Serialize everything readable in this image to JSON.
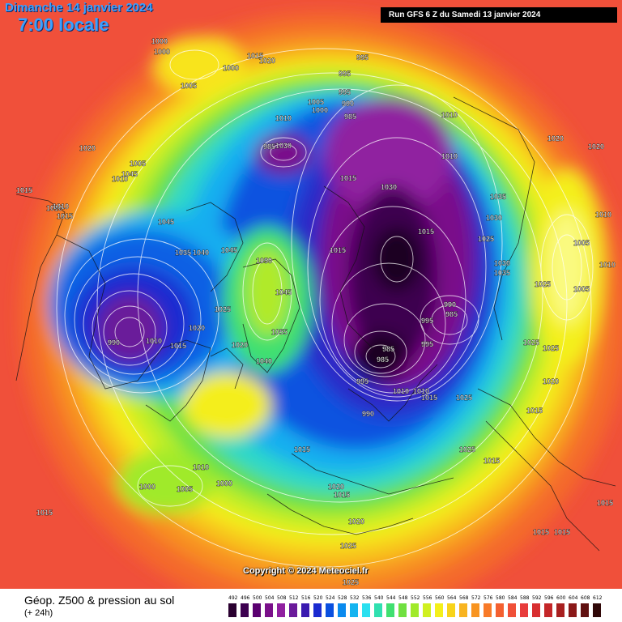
{
  "header": {
    "date_title": "Dimanche 14 janvier 2024",
    "time_title": "7:00 locale",
    "run_info": "Run GFS 6 Z du Samedi 13 janvier 2024"
  },
  "footer": {
    "title": "Géop. Z500 & pression au sol",
    "subtitle": "(+ 24h)",
    "copyright": "Copyright © 2024 Meteociel.fr"
  },
  "legend": {
    "values": [
      "492",
      "496",
      "500",
      "504",
      "508",
      "512",
      "516",
      "520",
      "524",
      "528",
      "532",
      "536",
      "540",
      "544",
      "548",
      "552",
      "556",
      "560",
      "564",
      "568",
      "572",
      "576",
      "580",
      "584",
      "588",
      "592",
      "596",
      "600",
      "604",
      "608",
      "612"
    ],
    "colors": [
      "#2a0030",
      "#3d0050",
      "#5a0070",
      "#7a108a",
      "#9020a0",
      "#6a1a9a",
      "#3a1ab0",
      "#1a2ad0",
      "#0a50e0",
      "#0a8aee",
      "#14b4f0",
      "#2ae0f0",
      "#30e0b0",
      "#40e070",
      "#70e040",
      "#a0ea2a",
      "#d0f020",
      "#f4f01a",
      "#f8d41a",
      "#f8b420",
      "#f89420",
      "#f87a28",
      "#f46030",
      "#f05038",
      "#e83c3c",
      "#d82e30",
      "#c42628",
      "#a82020",
      "#8a1818",
      "#601010",
      "#300808"
    ]
  },
  "pressure_labels": [
    {
      "text": "1000"
    },
    {
      "text": "1000"
    },
    {
      "text": "1005"
    },
    {
      "text": "1000"
    },
    {
      "text": "1015"
    },
    {
      "text": "1020"
    },
    {
      "text": "995"
    },
    {
      "text": "995"
    },
    {
      "text": "995"
    },
    {
      "text": "990"
    },
    {
      "text": "985"
    },
    {
      "text": "1005"
    },
    {
      "text": "1000"
    },
    {
      "text": "1010"
    },
    {
      "text": "1010"
    },
    {
      "text": "1010"
    },
    {
      "text": "1020"
    },
    {
      "text": "1020"
    },
    {
      "text": "1020"
    },
    {
      "text": "1005"
    },
    {
      "text": "1045"
    },
    {
      "text": "1010"
    },
    {
      "text": "985"
    },
    {
      "text": "1030"
    },
    {
      "text": "1015"
    },
    {
      "text": "1030"
    },
    {
      "text": "1015"
    },
    {
      "text": "1010"
    },
    {
      "text": "1015"
    },
    {
      "text": "1010"
    },
    {
      "text": "1010"
    },
    {
      "text": "1045"
    },
    {
      "text": "1035"
    },
    {
      "text": "1030"
    },
    {
      "text": "1025"
    },
    {
      "text": "1005"
    },
    {
      "text": "1030"
    },
    {
      "text": "1035"
    },
    {
      "text": "1010"
    },
    {
      "text": "1025"
    },
    {
      "text": "1005"
    },
    {
      "text": "1035"
    },
    {
      "text": "1040"
    },
    {
      "text": "1045"
    },
    {
      "text": "1050"
    },
    {
      "text": "1015"
    },
    {
      "text": "1015"
    },
    {
      "text": "1025"
    },
    {
      "text": "1045"
    },
    {
      "text": "990"
    },
    {
      "text": "985"
    },
    {
      "text": "995"
    },
    {
      "text": "1020"
    },
    {
      "text": "990"
    },
    {
      "text": "1010"
    },
    {
      "text": "1015"
    },
    {
      "text": "1020"
    },
    {
      "text": "1055"
    },
    {
      "text": "985"
    },
    {
      "text": "985"
    },
    {
      "text": "995"
    },
    {
      "text": "1025"
    },
    {
      "text": "1025"
    },
    {
      "text": "1040"
    },
    {
      "text": "995"
    },
    {
      "text": "1020"
    },
    {
      "text": "1015"
    },
    {
      "text": "1010"
    },
    {
      "text": "1010"
    },
    {
      "text": "1015"
    },
    {
      "text": "1025"
    },
    {
      "text": "990"
    },
    {
      "text": "1025"
    },
    {
      "text": "1015"
    },
    {
      "text": "1015"
    },
    {
      "text": "1010"
    },
    {
      "text": "1000"
    },
    {
      "text": "1005"
    },
    {
      "text": "1000"
    },
    {
      "text": "1015"
    },
    {
      "text": "1020"
    },
    {
      "text": "1015"
    },
    {
      "text": "1020"
    },
    {
      "text": "1015"
    },
    {
      "text": "1015"
    },
    {
      "text": "1025"
    },
    {
      "text": "1025"
    },
    {
      "text": "1015"
    }
  ]
}
